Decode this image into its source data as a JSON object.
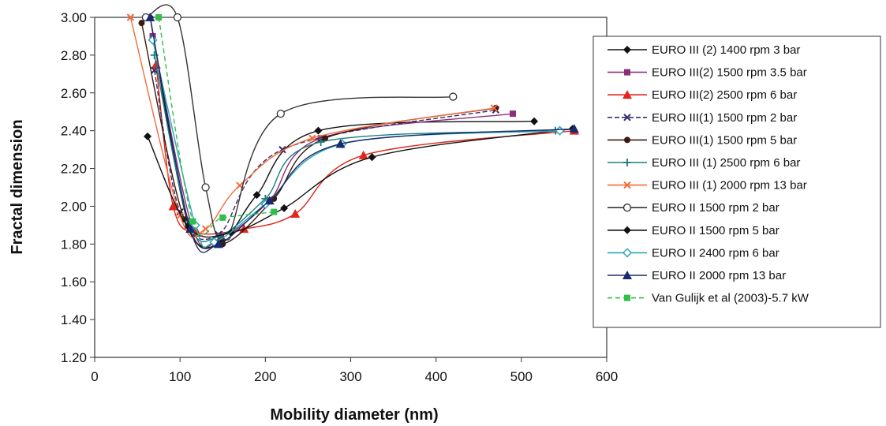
{
  "chart_data": {
    "type": "line",
    "title": "",
    "xlabel": "Mobility diameter (nm)",
    "ylabel": "Fractal dimension",
    "xlim": [
      0,
      600
    ],
    "ylim": [
      1.2,
      3.0
    ],
    "x_ticks": [
      0,
      100,
      200,
      300,
      400,
      500,
      600
    ],
    "y_ticks": [
      1.2,
      1.4,
      1.6,
      1.8,
      2.0,
      2.2,
      2.4,
      2.6,
      2.8,
      3.0
    ],
    "x_tick_labels": [
      "0",
      "100",
      "200",
      "300",
      "400",
      "500",
      "600"
    ],
    "y_tick_labels": [
      "1.20",
      "1.40",
      "1.60",
      "1.80",
      "2.00",
      "2.20",
      "2.40",
      "2.60",
      "2.80",
      "3.00"
    ],
    "grid": false,
    "legend_position": "right",
    "series": [
      {
        "name": "EURO III (2) 1400 rpm 3 bar",
        "color": "#111111",
        "marker": "diamond",
        "dash": "",
        "x": [
          65,
          110,
          150,
          190,
          262,
          515
        ],
        "y": [
          3.0,
          1.9,
          1.82,
          2.06,
          2.4,
          2.45
        ]
      },
      {
        "name": "EURO III(2) 1500 rpm 3.5 bar",
        "color": "#8b2f7b",
        "marker": "square",
        "dash": "",
        "x": [
          68,
          115,
          150,
          205,
          265,
          490
        ],
        "y": [
          2.9,
          1.88,
          1.84,
          2.03,
          2.36,
          2.49
        ]
      },
      {
        "name": "EURO III(2) 2500 rpm 6 bar",
        "color": "#e1251b",
        "marker": "triangle",
        "dash": "",
        "x": [
          72,
          92,
          120,
          175,
          235,
          315,
          562
        ],
        "y": [
          2.75,
          2.0,
          1.86,
          1.88,
          1.96,
          2.27,
          2.4
        ]
      },
      {
        "name": "EURO III(1) 1500 rpm 2 bar",
        "color": "#3a2a6a",
        "marker": "x",
        "dash": "6,3",
        "x": [
          70,
          100,
          145,
          220,
          470
        ],
        "y": [
          2.72,
          1.97,
          1.85,
          2.3,
          2.51
        ]
      },
      {
        "name": "EURO III(1) 1500 rpm 5 bar",
        "color": "#3a1a10",
        "marker": "circle",
        "dash": "",
        "x": [
          55,
          105,
          150,
          210,
          270,
          470
        ],
        "y": [
          2.97,
          1.93,
          1.8,
          2.04,
          2.36,
          2.52
        ]
      },
      {
        "name": "EURO III (1) 2500 rpm 6 bar",
        "color": "#1b7e7e",
        "marker": "plus",
        "dash": "",
        "x": [
          70,
          110,
          145,
          200,
          265,
          540
        ],
        "y": [
          2.8,
          1.92,
          1.84,
          2.04,
          2.34,
          2.4
        ]
      },
      {
        "name": "EURO III (1) 2000 rpm 13 bar",
        "color": "#f26b3a",
        "marker": "x",
        "dash": "",
        "x": [
          42,
          100,
          130,
          170,
          255,
          468
        ],
        "y": [
          3.0,
          1.95,
          1.88,
          2.11,
          2.36,
          2.52
        ]
      },
      {
        "name": "EURO II 1500 rpm 2 bar",
        "color": "#333333",
        "marker": "circle-open",
        "dash": "",
        "x": [
          60,
          97,
          130,
          155,
          218,
          420
        ],
        "y": [
          3.0,
          3.0,
          2.1,
          1.84,
          2.49,
          2.58
        ]
      },
      {
        "name": "EURO II 1500 rpm 5 bar",
        "color": "#111111",
        "marker": "diamond",
        "dash": "",
        "x": [
          62,
          110,
          160,
          222,
          325,
          560
        ],
        "y": [
          2.37,
          1.89,
          1.86,
          1.99,
          2.26,
          2.41
        ]
      },
      {
        "name": "EURO II 2400 rpm 6 bar",
        "color": "#2aa7b5",
        "marker": "diamond-open",
        "dash": "",
        "x": [
          68,
          118,
          140,
          200,
          290,
          545
        ],
        "y": [
          2.88,
          1.9,
          1.81,
          2.01,
          2.33,
          2.4
        ]
      },
      {
        "name": "EURO II 2000 rpm 13 bar",
        "color": "#1a2a6e",
        "marker": "triangle",
        "dash": "",
        "x": [
          65,
          112,
          145,
          205,
          288,
          562
        ],
        "y": [
          3.0,
          1.88,
          1.8,
          2.03,
          2.33,
          2.41
        ]
      },
      {
        "name": "Van Gulijk et al (2003)-5.7 kW",
        "color": "#2fbf4a",
        "marker": "square",
        "dash": "6,4",
        "x": [
          75,
          115,
          150,
          210
        ],
        "y": [
          3.0,
          1.92,
          1.94,
          1.97
        ]
      }
    ]
  }
}
